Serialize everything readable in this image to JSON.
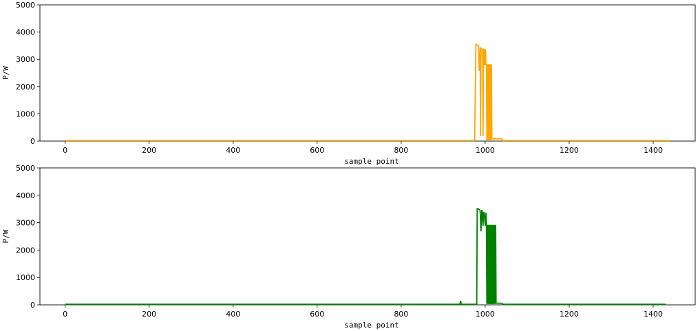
{
  "chart_data": [
    {
      "type": "line",
      "xlabel": "sample point",
      "ylabel": "P/W",
      "xlim": [
        -60,
        1500
      ],
      "ylim": [
        0,
        5000
      ],
      "xticks": [
        0,
        200,
        400,
        600,
        800,
        1000,
        1200,
        1400
      ],
      "yticks": [
        0,
        1000,
        2000,
        3000,
        4000,
        5000
      ],
      "grid": false,
      "series": [
        {
          "color": "#ffa500",
          "x": [
            0,
            975,
            978,
            979,
            984,
            986,
            988,
            989,
            990,
            992,
            994,
            995,
            996,
            998,
            999,
            1000,
            1001,
            1002,
            1003,
            1004,
            1005,
            1006,
            1007,
            1008,
            1009,
            1010,
            1011,
            1012,
            1013,
            1014,
            1015,
            1016,
            1017,
            1018,
            1040,
            1041,
            1440
          ],
          "y": [
            20,
            20,
            3550,
            3550,
            3480,
            2600,
            3450,
            200,
            3400,
            3350,
            3350,
            200,
            3380,
            2800,
            3350,
            2800,
            3350,
            2800,
            2800,
            50,
            2800,
            50,
            2800,
            50,
            2800,
            50,
            2800,
            50,
            2800,
            50,
            2800,
            80,
            80,
            80,
            80,
            20,
            20
          ]
        },
        {
          "color": "#008000",
          "x": [
            0,
            940,
            941,
            942,
            943,
            980,
            981,
            986,
            988,
            990,
            992,
            993,
            995,
            996,
            998,
            1000,
            1002,
            1003,
            1004,
            1005,
            1006,
            1007,
            1008,
            1009,
            1010,
            1011,
            1012,
            1013,
            1014,
            1015,
            1016,
            1017,
            1018,
            1019,
            1020,
            1021,
            1022,
            1023,
            1024,
            1025,
            1026,
            1040,
            1041,
            1430
          ],
          "y": [
            20,
            20,
            130,
            130,
            20,
            20,
            3520,
            3480,
            3450,
            2700,
            3450,
            3400,
            2900,
            3380,
            3350,
            2900,
            3350,
            2900,
            50,
            2900,
            50,
            2900,
            50,
            2900,
            50,
            2900,
            50,
            2900,
            50,
            2900,
            50,
            2900,
            50,
            2900,
            50,
            2900,
            50,
            2900,
            50,
            2900,
            60,
            60,
            20,
            20
          ]
        }
      ]
    }
  ]
}
